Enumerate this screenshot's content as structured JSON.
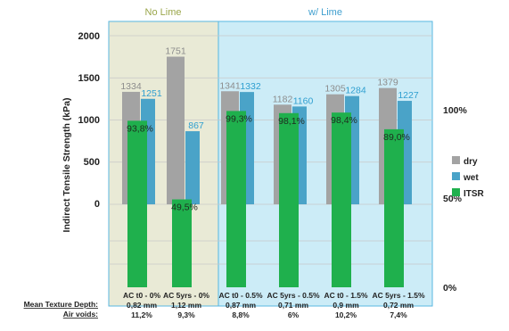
{
  "chart_data": {
    "type": "bar",
    "group_titles": [
      "No Lime",
      "w/ Lime"
    ],
    "ylabel": "Indirect Tensile Strength (kPa)",
    "ylim": [
      0,
      2000
    ],
    "y_ticks": [
      "2000",
      "1500",
      "1000",
      "500",
      "0"
    ],
    "y2_ticks": [
      "100%",
      "50%",
      "0%"
    ],
    "categories": [
      "AC t0 - 0%",
      "AC 5yrs - 0%",
      "AC t0 - 0.5%",
      "AC 5yrs - 0.5%",
      "AC t0 - 1.5%",
      "AC 5yrs - 1.5%"
    ],
    "series": [
      {
        "name": "dry",
        "values": [
          1334,
          1751,
          1341,
          1182,
          1305,
          1379
        ],
        "labels": [
          "1334",
          "1751",
          "1341",
          "1182",
          "1305",
          "1379"
        ]
      },
      {
        "name": "wet",
        "values": [
          1251,
          867,
          1332,
          1160,
          1284,
          1227
        ],
        "labels": [
          "1251",
          "867",
          "1332",
          "1160",
          "1284",
          "1227"
        ]
      },
      {
        "name": "ITSR",
        "values": [
          93.8,
          49.5,
          99.3,
          98.1,
          98.4,
          89.0
        ],
        "labels": [
          "93,8%",
          "49,5%",
          "99,3%",
          "98,1%",
          "98,4%",
          "89,0%"
        ]
      }
    ],
    "footer": {
      "texture_label": "Mean Texture Depth:",
      "air_label": "Air voids:",
      "texture_values": [
        "0,82 mm",
        "1,12 mm",
        "0,87 mm",
        "0,71 mm",
        "0,9 mm",
        "0,72 mm"
      ],
      "air_values": [
        "11,2%",
        "9,3%",
        "8,8%",
        "6%",
        "10,2%",
        "7,4%"
      ]
    },
    "legend_position": "right",
    "colors": {
      "dry": "#a3a3a3",
      "wet": "#4aa3c8",
      "itsr": "#1fb04d",
      "dry_text": "#8c8c8c",
      "wet_text": "#2f9fd0",
      "itsr_text": "#1f2a1f",
      "panel_no_lime": "#e9ead6",
      "panel_w_lime": "#ccecf7",
      "panel_border": "#58b7e0",
      "title_no_lime": "#9aa64a",
      "title_w_lime": "#3f9fcf"
    }
  }
}
